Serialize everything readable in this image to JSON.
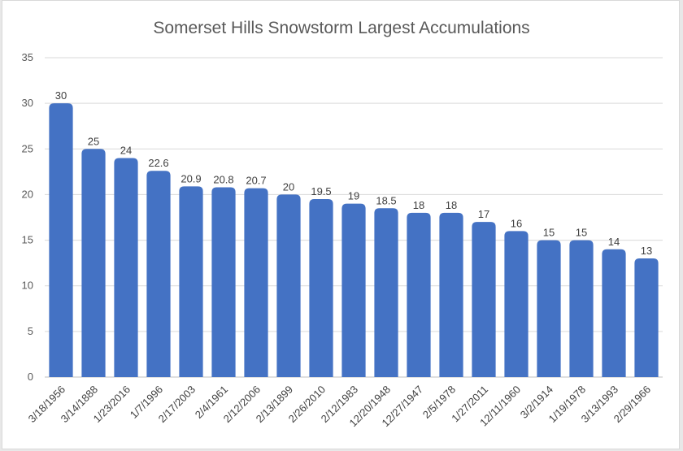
{
  "chart_data": {
    "type": "bar",
    "title": "Somerset Hills Snowstorm Largest Accumulations",
    "xlabel": "",
    "ylabel": "",
    "ylim": [
      0,
      35
    ],
    "yticks": [
      0,
      5,
      10,
      15,
      20,
      25,
      30,
      35
    ],
    "grid": true,
    "legend": "none",
    "bar_color": "#4472c4",
    "categories": [
      "3/18/1956",
      "3/14/1888",
      "1/23/2016",
      "1/7/1996",
      "2/17/2003",
      "2/4/1961",
      "2/12/2006",
      "2/13/1899",
      "2/26/2010",
      "2/12/1983",
      "12/20/1948",
      "12/27/1947",
      "2/5/1978",
      "1/27/2011",
      "12/11/1960",
      "3/2/1914",
      "1/19/1978",
      "3/13/1993",
      "2/29/1966"
    ],
    "values": [
      30,
      25,
      24,
      22.6,
      20.9,
      20.8,
      20.7,
      20,
      19.5,
      19,
      18.5,
      18,
      18,
      17,
      16,
      15,
      15,
      14,
      13
    ],
    "data_labels": [
      "30",
      "25",
      "24",
      "22.6",
      "20.9",
      "20.8",
      "20.7",
      "20",
      "19.5",
      "19",
      "18.5",
      "18",
      "18",
      "17",
      "16",
      "15",
      "15",
      "14",
      "13"
    ]
  }
}
